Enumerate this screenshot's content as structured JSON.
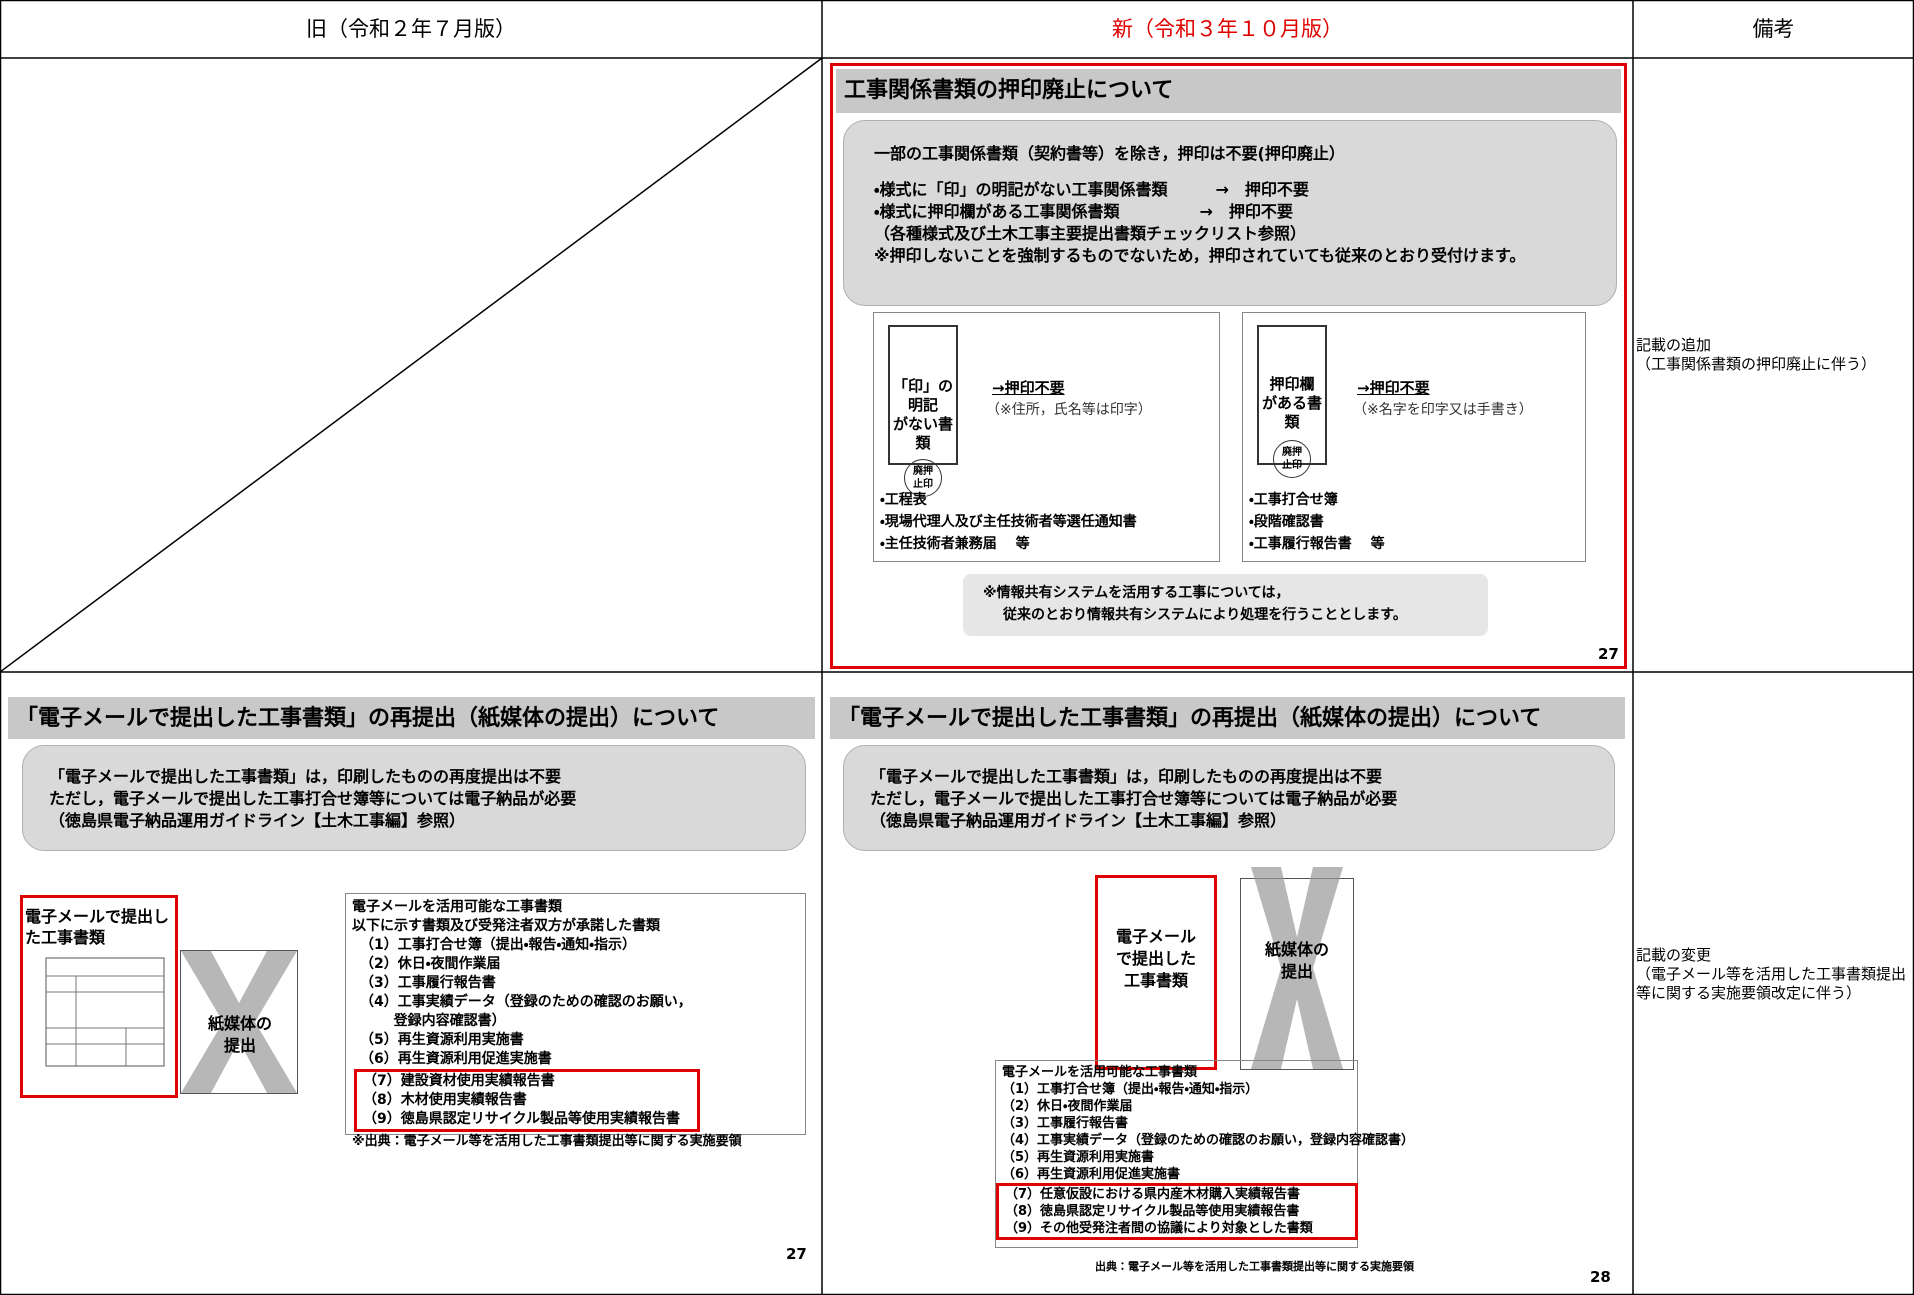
{
  "header": {
    "old": "旧（令和２年７月版）",
    "new": "新（令和３年１０月版）",
    "remarks": "備考"
  },
  "rows": [
    {
      "remarks": [
        "記載の追加",
        "（工事関係書類の押印廃止に伴う）"
      ],
      "new": {
        "title": "工事関係書類の押印廃止について",
        "summary": "一部の工事関係書類（契約書等）を除き，押印は不要(押印廃止）",
        "rules": [
          "・様式に「印」の明記がない工事関係書類　　　→　押印不要",
          "・様式に押印欄がある工事関係書類　　　　　→　押印不要",
          "（各種様式及び土木工事主要提出書類チェックリスト参照）",
          "※押印しないことを強制するものでないため，押印されていても従来のとおり受付けます。"
        ],
        "panels": [
          {
            "doc": [
              "「印」の明記",
              "がない書類"
            ],
            "stamp": [
              "廃押",
              "止印"
            ],
            "result": "→押印不要",
            "note": "（※住所，氏名等は印字）",
            "items": [
              "・工程表",
              "・現場代理人及び主任技術者等選任通知書",
              "・主任技術者兼務届　 等"
            ]
          },
          {
            "doc": [
              "押印欄",
              "がある書類"
            ],
            "stamp": [
              "廃押",
              "止印"
            ],
            "result": "→押印不要",
            "note": "（※名字を印字又は手書き）",
            "items": [
              "・工事打合せ簿",
              "・段階確認書",
              "・工事履行報告書　 等"
            ]
          }
        ],
        "note_box": [
          "※情報共有システムを活用する工事については，",
          "従来のとおり情報共有システムにより処理を行うこととします。"
        ],
        "page": "27"
      }
    },
    {
      "remarks": [
        "記載の変更",
        "（電子メール等を活用した工事書類提出等に関する実施要領改定に伴う）"
      ],
      "old": {
        "title": "「電子メールで提出した工事書類」の再提出（紙媒体の提出）について",
        "summary": [
          "「電子メールで提出した工事書類」は，印刷したものの再度提出は不要",
          "ただし，電子メールで提出した工事打合せ簿等については電子納品が必要",
          "（徳島県電子納品運用ガイドライン【土木工事編】参照）"
        ],
        "email_doc": "電子メールで提出した工事書類",
        "paper": "紙媒体の提出",
        "list_title": "電子メールを活用可能な工事書類",
        "list_intro": "以下に示す書類及び受発注者双方が承諾した書類",
        "items": [
          "（1）工事打合せ簿（提出・報告・通知・指示）",
          "（2）休日・夜間作業届",
          "（3）工事履行報告書",
          "（4）工事実績データ（登録のための確認のお願い，登録内容確認書）",
          "（5）再生資源利用実施書",
          "（6）再生資源利用促進実施書",
          "（7）建設資材使用実績報告書",
          "（8）木材使用実績報告書",
          "（9）徳島県認定リサイクル製品等使用実績報告書"
        ],
        "source": "※出典：電子メール等を活用した工事書類提出等に関する実施要領",
        "page": "27"
      },
      "new": {
        "title": "「電子メールで提出した工事書類」の再提出（紙媒体の提出）について",
        "summary": [
          "「電子メールで提出した工事書類」は，印刷したものの再度提出は不要",
          "ただし，電子メールで提出した工事打合せ簿等については電子納品が必要",
          "（徳島県電子納品運用ガイドライン【土木工事編】参照）"
        ],
        "email_doc": "電子メールで提出した工事書類",
        "paper": "紙媒体の提出",
        "list_title": "電子メールを活用可能な工事書類",
        "items": [
          "（1）工事打合せ簿（提出・報告・通知・指示）",
          "（2）休日・夜間作業届",
          "（3）工事履行報告書",
          "（4）工事実績データ（登録のための確認のお願い，登録内容確認書）",
          "（5）再生資源利用実施書",
          "（6）再生資源利用促進実施書",
          "（7）任意仮設における県内産木材購入実績報告書",
          "（8）徳島県認定リサイクル製品等使用実績報告書",
          "（9）その他受発注者間の協議により対象とした書類"
        ],
        "source": "出典：電子メール等を活用した工事書類提出等に関する実施要領",
        "page": "28"
      }
    }
  ]
}
